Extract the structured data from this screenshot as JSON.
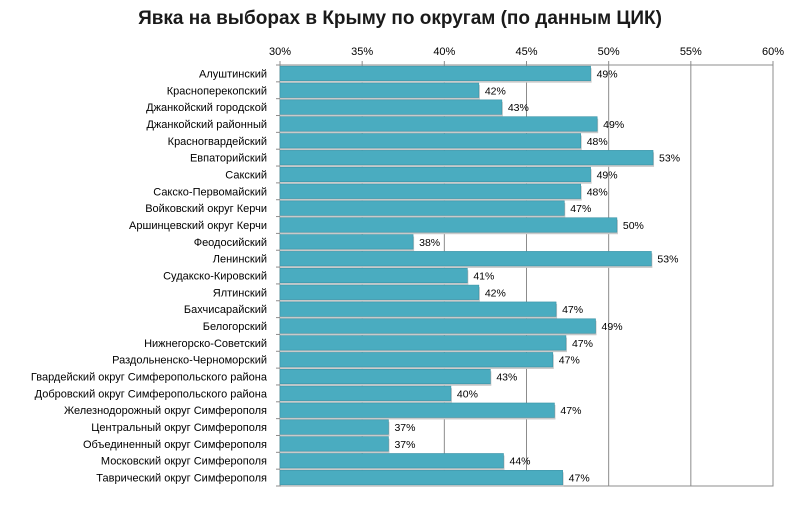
{
  "chart_data": {
    "type": "bar",
    "orientation": "horizontal",
    "title": "Явка на выборах в Крыму по округам (по данным ЦИК)",
    "xlabel": "",
    "ylabel": "",
    "xlim": [
      30,
      60
    ],
    "x_ticks": [
      30,
      35,
      40,
      45,
      50,
      55,
      60
    ],
    "x_tick_labels": [
      "30%",
      "35%",
      "40%",
      "45%",
      "50%",
      "55%",
      "60%"
    ],
    "tick_axis_position": "top",
    "grid": true,
    "legend": "none",
    "bar_color": "#4aacc0",
    "bar_edge_color": "#3a93a6",
    "categories": [
      "Алуштинский",
      "Красноперекопский",
      "Джанкойский городской",
      "Джанкойский районный",
      "Красногвардейский",
      "Евпаторийский",
      "Сакский",
      "Сакско-Первомайский",
      "Войковский округ Керчи",
      "Аршинцевский округ Керчи",
      "Феодосийский",
      "Ленинский",
      "Судакско-Кировский",
      "Ялтинский",
      "Бахчисарайский",
      "Белогорский",
      "Нижнегорско-Советский",
      "Раздольненско-Черноморский",
      "Гвардейский округ Симферопольского района",
      "Добровский округ Симферопольского района",
      "Железнодорожный округ Симферополя",
      "Центральный округ Симферополя",
      "Объединенный округ Симферополя",
      "Московский округ Симферополя",
      "Таврический округ Симферополя"
    ],
    "values": [
      48.9,
      42.1,
      43.5,
      49.3,
      48.3,
      52.7,
      48.9,
      48.3,
      47.3,
      50.5,
      38.1,
      52.6,
      41.4,
      42.1,
      46.8,
      49.2,
      47.4,
      46.6,
      42.8,
      40.4,
      46.7,
      36.6,
      36.6,
      43.6,
      47.2
    ],
    "value_labels": [
      "49%",
      "42%",
      "43%",
      "49%",
      "48%",
      "53%",
      "49%",
      "48%",
      "47%",
      "50%",
      "38%",
      "53%",
      "41%",
      "42%",
      "47%",
      "49%",
      "47%",
      "47%",
      "43%",
      "40%",
      "47%",
      "37%",
      "37%",
      "44%",
      "47%"
    ]
  }
}
